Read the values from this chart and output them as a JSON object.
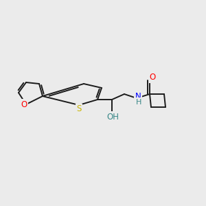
{
  "background_color": "#ebebeb",
  "bond_color": "#1a1a1a",
  "atom_colors": {
    "O": "#ff0000",
    "S": "#c8b400",
    "N": "#0000ff",
    "OH_color": "#3a8888",
    "H_color": "#3a8888"
  },
  "figsize": [
    3.0,
    3.0
  ],
  "dpi": 100
}
